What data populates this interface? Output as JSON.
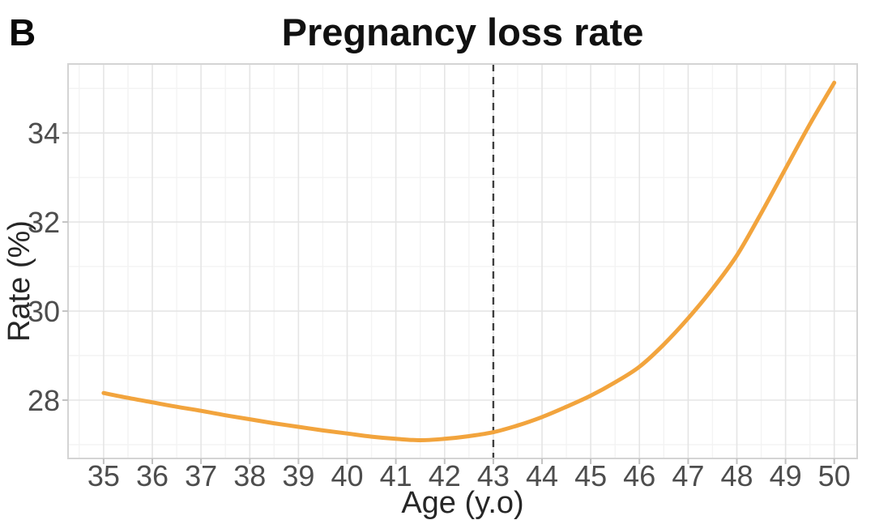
{
  "panel_label": "B",
  "chart_data": {
    "type": "line",
    "title": "Pregnancy loss rate",
    "xlabel": "Age (y.o)",
    "ylabel": "Rate (%)",
    "x_ticks": [
      35,
      36,
      37,
      38,
      39,
      40,
      41,
      42,
      43,
      44,
      45,
      46,
      47,
      48,
      49,
      50
    ],
    "y_ticks": [
      28,
      30,
      32,
      34
    ],
    "x_minor_gridlines": [
      34.5,
      35.5,
      36.5,
      37.5,
      38.5,
      39.5,
      40.5,
      41.5,
      42.5,
      43.5,
      44.5,
      45.5,
      46.5,
      47.5,
      48.5,
      49.5
    ],
    "y_minor_gridlines": [
      27,
      29,
      31,
      33,
      35
    ],
    "xlim": [
      34.27,
      50.47
    ],
    "ylim": [
      26.69,
      35.55
    ],
    "grid": "on",
    "legend_position": "none",
    "series": [
      {
        "name": "loss-rate-curve",
        "color": "#F2A43D",
        "x": [
          35,
          35.5,
          36,
          36.5,
          37,
          37.5,
          38,
          38.5,
          39,
          39.5,
          40,
          40.5,
          41,
          41.5,
          42,
          42.5,
          43,
          43.5,
          44,
          44.5,
          45,
          45.5,
          46,
          46.5,
          47,
          47.5,
          48,
          48.5,
          49,
          49.5,
          50
        ],
        "y": [
          28.16,
          28.05,
          27.95,
          27.85,
          27.76,
          27.66,
          27.57,
          27.48,
          27.4,
          27.32,
          27.25,
          27.18,
          27.13,
          27.1,
          27.13,
          27.19,
          27.28,
          27.43,
          27.62,
          27.85,
          28.1,
          28.4,
          28.75,
          29.25,
          29.84,
          30.5,
          31.25,
          32.2,
          33.2,
          34.2,
          35.13
        ]
      }
    ],
    "annotations": [
      {
        "type": "vline",
        "x": 43,
        "line_style": "dashed",
        "color": "#3F3F3F"
      }
    ]
  },
  "style": {
    "background": "#FFFFFF",
    "grid_major_color": "#E5E5E5",
    "grid_minor_color": "#F3F3F3",
    "panel_border_color": "#D4D4D4",
    "tick_mark_color": "#C2C2C2",
    "tick_label_color": "#4D4D4D",
    "axis_title_color": "#262626",
    "title_color": "#111111",
    "curve_color": "#F2A43D",
    "vline_color": "#3F3F3F"
  }
}
